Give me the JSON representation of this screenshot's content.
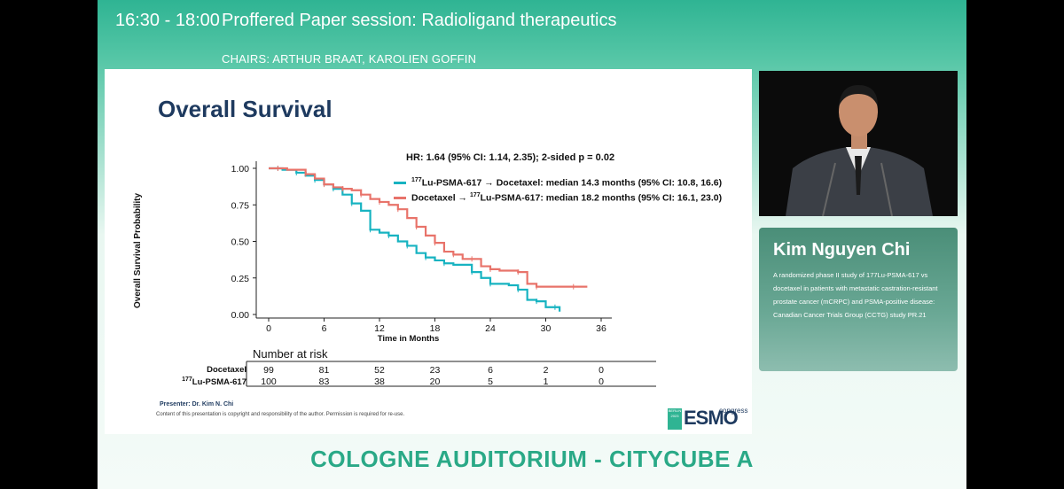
{
  "header": {
    "time": "16:30 - 18:00",
    "session_title": "Proffered Paper session: Radioligand therapeutics",
    "chairs": "CHAIRS: ARTHUR BRAAT, KAROLIEN GOFFIN"
  },
  "slide": {
    "title": "Overall Survival",
    "hr_text": "HR: 1.64 (95% CI: 1.14, 2.35); 2-sided p = 0.02",
    "legend": [
      {
        "prefix": "177",
        "text": "Lu-PSMA-617 → Docetaxel: median 14.3 months (95% CI: 10.8, 16.6)",
        "color": "#17b3c1"
      },
      {
        "prefix": "",
        "text": "Docetaxel → ",
        "prefix2": "177",
        "text2": "Lu-PSMA-617: median 18.2 months (95% CI: 16.1, 23.0)",
        "color": "#e8736a"
      }
    ],
    "risk": {
      "title": "Number at risk",
      "rows": [
        {
          "label": "Docetaxel",
          "values": [
            "99",
            "81",
            "52",
            "23",
            "6",
            "2",
            "0"
          ]
        },
        {
          "label_prefix": "177",
          "label": "Lu-PSMA-617",
          "values": [
            "100",
            "83",
            "38",
            "20",
            "5",
            "1",
            "0"
          ]
        }
      ]
    },
    "presenter": "Presenter: Dr. Kim N. Chi",
    "copyright": "Content of this presentation is copyright and responsibility of the author. Permission is required for re-use.",
    "esmo": {
      "logo": "ESMO",
      "congress": "congress",
      "badge": "BERLIN 2023"
    }
  },
  "speaker": {
    "name": "Kim Nguyen Chi",
    "description": "A randomized phase II study of 177Lu-PSMA-617 vs docetaxel in patients with metastatic castration-resistant prostate cancer (mCRPC) and PSMA-positive disease: Canadian Cancer Trials Group (CCTG) study PR.21"
  },
  "venue": "COLOGNE AUDITORIUM - CITYCUBE A",
  "chart_data": {
    "type": "line",
    "title": "",
    "xlabel": "Time in Months",
    "ylabel": "Overall Survival Probability",
    "xlim": [
      0,
      36
    ],
    "ylim": [
      0,
      1
    ],
    "x_ticks": [
      "0",
      "6",
      "12",
      "18",
      "24",
      "30",
      "36"
    ],
    "y_ticks": [
      "0.00",
      "0.25",
      "0.50",
      "0.75",
      "1.00"
    ],
    "series": [
      {
        "name": "177Lu-PSMA-617 → Docetaxel",
        "color": "#17b3c1",
        "points": [
          [
            0,
            1
          ],
          [
            1,
            1
          ],
          [
            1.5,
            0.99
          ],
          [
            3,
            0.97
          ],
          [
            4,
            0.95
          ],
          [
            5,
            0.92
          ],
          [
            6,
            0.89
          ],
          [
            7,
            0.86
          ],
          [
            8,
            0.82
          ],
          [
            9,
            0.76
          ],
          [
            10,
            0.71
          ],
          [
            11,
            0.58
          ],
          [
            12,
            0.56
          ],
          [
            13,
            0.54
          ],
          [
            14,
            0.5
          ],
          [
            15,
            0.47
          ],
          [
            16,
            0.42
          ],
          [
            17,
            0.39
          ],
          [
            18,
            0.37
          ],
          [
            19,
            0.35
          ],
          [
            20,
            0.34
          ],
          [
            22,
            0.29
          ],
          [
            23,
            0.25
          ],
          [
            24,
            0.21
          ],
          [
            26,
            0.2
          ],
          [
            27,
            0.17
          ],
          [
            28,
            0.1
          ],
          [
            29,
            0.09
          ],
          [
            30,
            0.05
          ],
          [
            31,
            0.05
          ],
          [
            31.5,
            0.02
          ]
        ]
      },
      {
        "name": "Docetaxel → 177Lu-PSMA-617",
        "color": "#e8736a",
        "points": [
          [
            0,
            1
          ],
          [
            1,
            1
          ],
          [
            2,
            0.99
          ],
          [
            4,
            0.96
          ],
          [
            5,
            0.93
          ],
          [
            6,
            0.89
          ],
          [
            7,
            0.87
          ],
          [
            8,
            0.86
          ],
          [
            9,
            0.85
          ],
          [
            10,
            0.82
          ],
          [
            11,
            0.79
          ],
          [
            12,
            0.77
          ],
          [
            13,
            0.75
          ],
          [
            14,
            0.72
          ],
          [
            15,
            0.66
          ],
          [
            16,
            0.6
          ],
          [
            17,
            0.54
          ],
          [
            18,
            0.49
          ],
          [
            19,
            0.43
          ],
          [
            20,
            0.41
          ],
          [
            21,
            0.38
          ],
          [
            22,
            0.38
          ],
          [
            23,
            0.33
          ],
          [
            24,
            0.31
          ],
          [
            25,
            0.3
          ],
          [
            27,
            0.29
          ],
          [
            28,
            0.21
          ],
          [
            29,
            0.19
          ],
          [
            30,
            0.19
          ],
          [
            33,
            0.19
          ],
          [
            34.5,
            0.19
          ]
        ]
      }
    ]
  }
}
